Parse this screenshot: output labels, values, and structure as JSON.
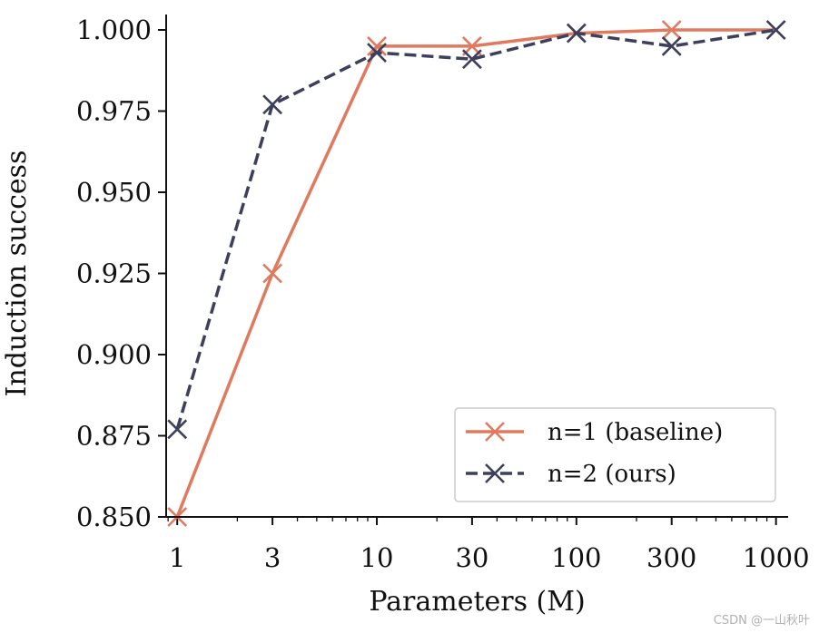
{
  "chart_data": {
    "type": "line",
    "title": "",
    "xlabel": "Parameters (M)",
    "ylabel": "Induction success",
    "xscale": "log",
    "x": [
      1,
      3,
      10,
      30,
      100,
      300,
      1000
    ],
    "xticklabels": [
      "1",
      "3",
      "10",
      "30",
      "100",
      "300",
      "1000"
    ],
    "xlim": [
      0.88,
      1150
    ],
    "ylim": [
      0.85,
      1.0
    ],
    "yticks": [
      "0.850",
      "0.875",
      "0.900",
      "0.925",
      "0.950",
      "0.975",
      "1.000"
    ],
    "grid": false,
    "legend_position": "lower-right",
    "series": [
      {
        "name": "n=1 (baseline)",
        "color": "#e07a5f",
        "linestyle": "solid",
        "marker": "x",
        "values": [
          0.85,
          0.925,
          0.995,
          0.995,
          0.999,
          1.0,
          1.0
        ]
      },
      {
        "name": "n=2 (ours)",
        "color": "#3d405b",
        "linestyle": "dashed",
        "marker": "x",
        "values": [
          0.877,
          0.977,
          0.993,
          0.991,
          0.999,
          0.995,
          1.0
        ]
      }
    ]
  },
  "watermark": "CSDN @一山秋叶"
}
